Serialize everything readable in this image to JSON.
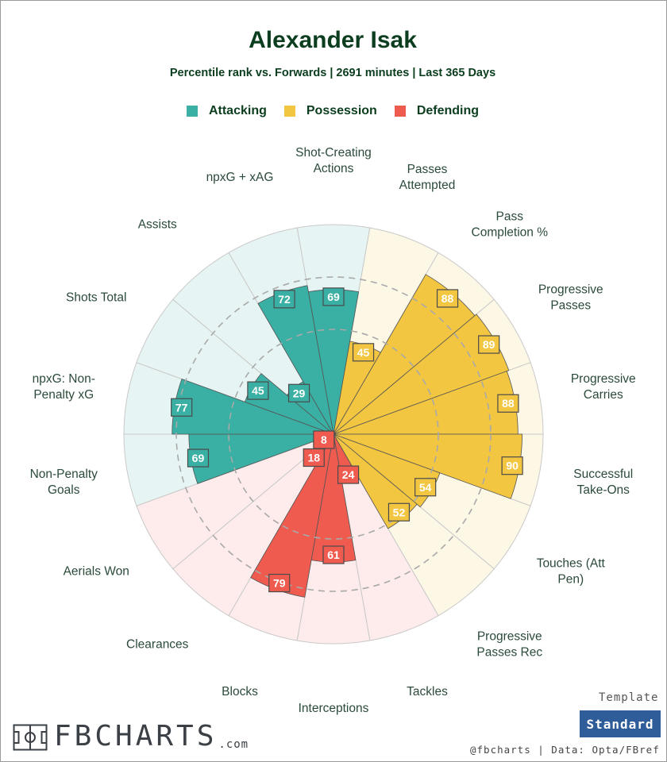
{
  "title": "Alexander Isak",
  "subtitle": "Percentile rank vs. Forwards | 2691 minutes | Last 365 Days",
  "legend": [
    {
      "label": "Attacking",
      "color": "#3aafa3"
    },
    {
      "label": "Possession",
      "color": "#f2c641"
    },
    {
      "label": "Defending",
      "color": "#ef5b4f"
    }
  ],
  "brand": {
    "name": "FBCHARTS",
    "domain": ".com",
    "logo_icon": "pitch-icon"
  },
  "template": {
    "label": "Template",
    "value": "Standard"
  },
  "credits": "@fbcharts | Data: Opta/FBref",
  "chart_data": {
    "type": "polar-bar",
    "value_range": [
      0,
      100
    ],
    "gridline_values": [
      50,
      75
    ],
    "series": [
      {
        "category": "Shot-Creating Actions",
        "group": "Attacking",
        "value": 69
      },
      {
        "category": "Passes Attempted",
        "group": "Possession",
        "value": 45
      },
      {
        "category": "Pass Completion %",
        "group": "Possession",
        "value": 88
      },
      {
        "category": "Progressive Passes",
        "group": "Possession",
        "value": 89
      },
      {
        "category": "Progressive Carries",
        "group": "Possession",
        "value": 88
      },
      {
        "category": "Successful Take-Ons",
        "group": "Possession",
        "value": 90
      },
      {
        "category": "Touches (Att Pen)",
        "group": "Possession",
        "value": 54
      },
      {
        "category": "Progressive Passes Rec",
        "group": "Possession",
        "value": 52
      },
      {
        "category": "Tackles",
        "group": "Defending",
        "value": 24
      },
      {
        "category": "Interceptions",
        "group": "Defending",
        "value": 61
      },
      {
        "category": "Blocks",
        "group": "Defending",
        "value": 79
      },
      {
        "category": "Clearances",
        "group": "Defending",
        "value": 18
      },
      {
        "category": "Aerials Won",
        "group": "Defending",
        "value": 8
      },
      {
        "category": "Non-Penalty Goals",
        "group": "Attacking",
        "value": 69
      },
      {
        "category": "npxG: Non-Penalty xG",
        "group": "Attacking",
        "value": 77
      },
      {
        "category": "Shots Total",
        "group": "Attacking",
        "value": 45
      },
      {
        "category": "Assists",
        "group": "Attacking",
        "value": 29
      },
      {
        "category": "npxG + xAG",
        "group": "Attacking",
        "value": 72
      }
    ],
    "category_labels": [
      [
        "Shot-Creating",
        "Actions"
      ],
      [
        "Passes",
        "Attempted"
      ],
      [
        "Pass",
        "Completion %"
      ],
      [
        "Progressive",
        "Passes"
      ],
      [
        "Progressive",
        "Carries"
      ],
      [
        "Successful",
        "Take-Ons"
      ],
      [
        "Touches (Att",
        "Pen)"
      ],
      [
        "Progressive",
        "Passes Rec"
      ],
      [
        "Tackles"
      ],
      [
        "Interceptions"
      ],
      [
        "Blocks"
      ],
      [
        "Clearances"
      ],
      [
        "Aerials Won"
      ],
      [
        "Non-Penalty",
        "Goals"
      ],
      [
        "npxG: Non-",
        "Penalty xG"
      ],
      [
        "Shots Total"
      ],
      [
        "Assists"
      ],
      [
        "npxG + xAG"
      ]
    ],
    "group_colors": {
      "Attacking": "#3aafa3",
      "Possession": "#f2c641",
      "Defending": "#ef5b4f"
    },
    "group_background_colors": {
      "Attacking": "#e6f5f3",
      "Possession": "#fdf7e6",
      "Defending": "#fdeceb"
    }
  }
}
